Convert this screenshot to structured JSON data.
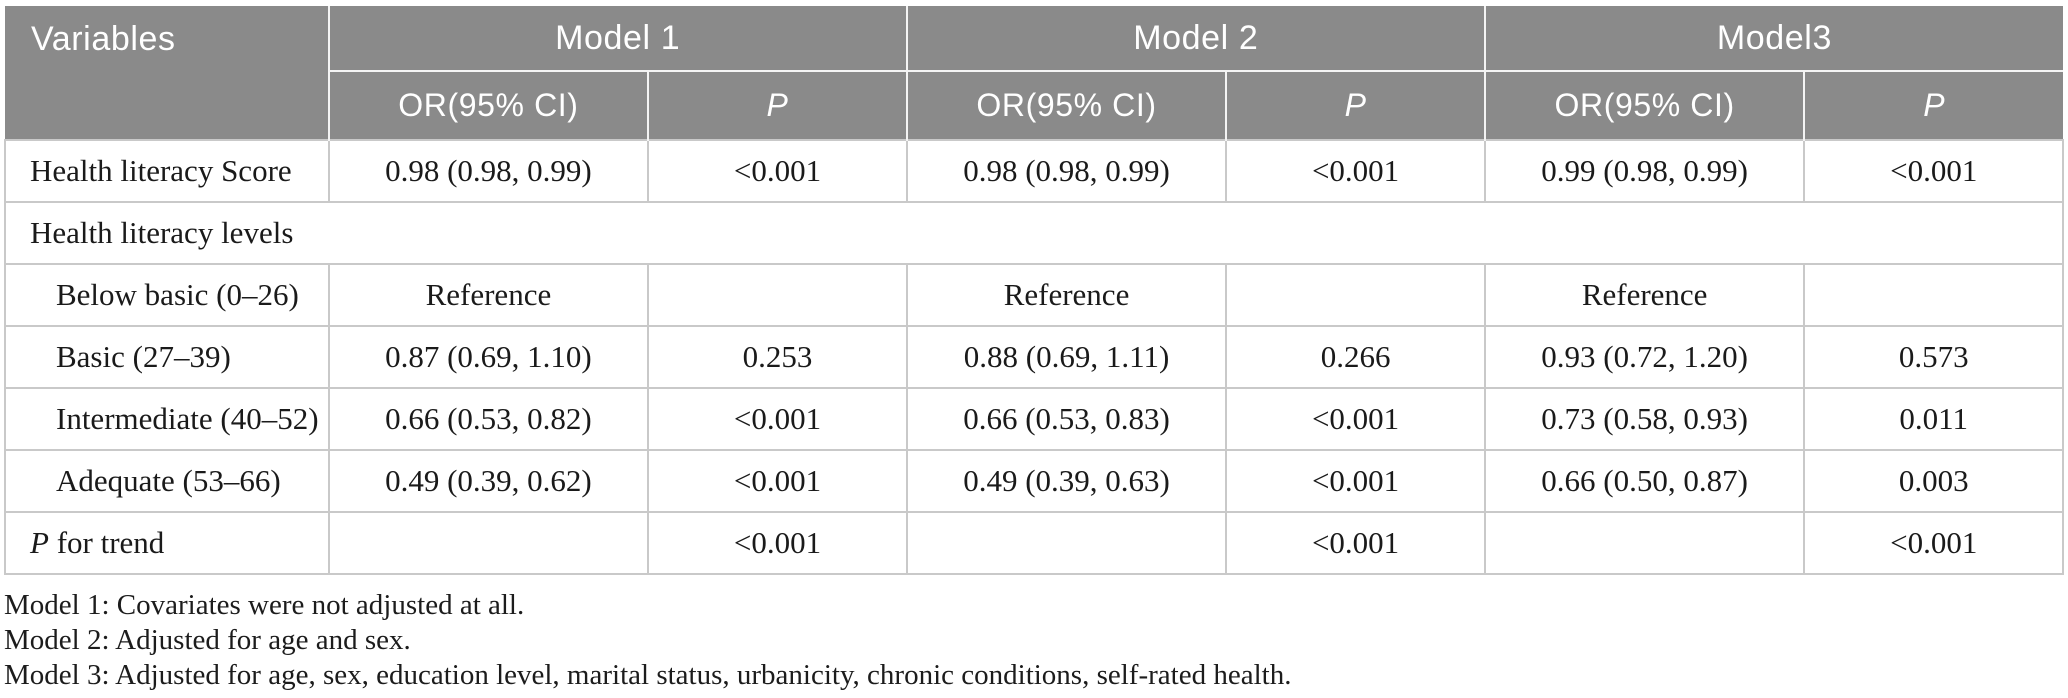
{
  "colors": {
    "header_bg": "#8a8a8a",
    "header_text": "#ffffff",
    "grid_line": "#c9c9c9",
    "body_text": "#1a1a1a"
  },
  "table": {
    "header": {
      "variables_label": "Variables",
      "groups": [
        {
          "label": "Model 1"
        },
        {
          "label": "Model 2"
        },
        {
          "label": "Model3"
        }
      ],
      "or_label": "OR(95% CI)",
      "p_label": "P"
    },
    "rows": [
      {
        "type": "data",
        "indent": false,
        "label_runs": [
          {
            "text": "Health literacy Score",
            "italic": false
          }
        ],
        "m1_or": "0.98 (0.98, 0.99)",
        "m1_p": "<0.001",
        "m2_or": "0.98 (0.98, 0.99)",
        "m2_p": "<0.001",
        "m3_or": "0.99 (0.98, 0.99)",
        "m3_p": "<0.001"
      },
      {
        "type": "section",
        "label_runs": [
          {
            "text": "Health literacy levels",
            "italic": false
          }
        ]
      },
      {
        "type": "data",
        "indent": true,
        "label_runs": [
          {
            "text": "Below basic (0–26)",
            "italic": false
          }
        ],
        "m1_or": "Reference",
        "m1_p": "",
        "m2_or": "Reference",
        "m2_p": "",
        "m3_or": "Reference",
        "m3_p": ""
      },
      {
        "type": "data",
        "indent": true,
        "label_runs": [
          {
            "text": "Basic (27–39)",
            "italic": false
          }
        ],
        "m1_or": "0.87 (0.69, 1.10)",
        "m1_p": "0.253",
        "m2_or": "0.88 (0.69, 1.11)",
        "m2_p": "0.266",
        "m3_or": "0.93 (0.72, 1.20)",
        "m3_p": "0.573"
      },
      {
        "type": "data",
        "indent": true,
        "label_runs": [
          {
            "text": "Intermediate (40–52)",
            "italic": false
          }
        ],
        "m1_or": "0.66 (0.53, 0.82)",
        "m1_p": "<0.001",
        "m2_or": "0.66 (0.53, 0.83)",
        "m2_p": "<0.001",
        "m3_or": "0.73 (0.58, 0.93)",
        "m3_p": "0.011"
      },
      {
        "type": "data",
        "indent": true,
        "label_runs": [
          {
            "text": "Adequate (53–66)",
            "italic": false
          }
        ],
        "m1_or": "0.49 (0.39, 0.62)",
        "m1_p": "<0.001",
        "m2_or": "0.49 (0.39, 0.63)",
        "m2_p": "<0.001",
        "m3_or": "0.66 (0.50, 0.87)",
        "m3_p": "0.003"
      },
      {
        "type": "data",
        "indent": false,
        "label_runs": [
          {
            "text": "P",
            "italic": true
          },
          {
            "text": " for trend",
            "italic": false
          }
        ],
        "m1_or": "",
        "m1_p": "<0.001",
        "m2_or": "",
        "m2_p": "<0.001",
        "m3_or": "",
        "m3_p": "<0.001"
      }
    ],
    "footnotes": [
      "Model 1: Covariates were not adjusted at all.",
      "Model 2: Adjusted for age and sex.",
      "Model 3: Adjusted for age, sex, education level, marital status, urbanicity, chronic conditions, self-rated health."
    ]
  }
}
